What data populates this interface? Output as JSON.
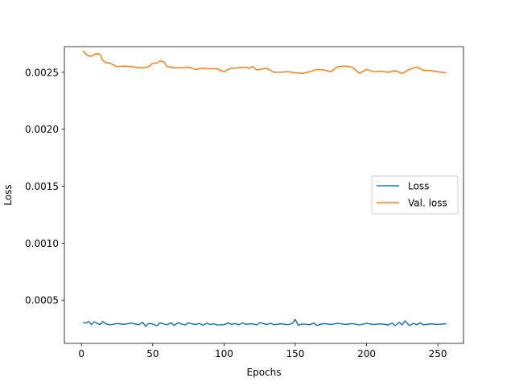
{
  "chart_data": {
    "type": "line",
    "xlabel": "Epochs",
    "ylabel": "Loss",
    "xlim": [
      -12,
      268
    ],
    "ylim": [
      0.00012,
      0.002725
    ],
    "xticks": [
      0,
      50,
      100,
      150,
      200,
      250
    ],
    "xtick_labels": [
      "0",
      "50",
      "100",
      "150",
      "200",
      "250"
    ],
    "yticks": [
      0.0005,
      0.001,
      0.0015,
      0.002,
      0.0025
    ],
    "ytick_labels": [
      "0.0005",
      "0.0010",
      "0.0015",
      "0.0020",
      "0.0025"
    ],
    "legend_placement": "center-right",
    "grid": false,
    "series": [
      {
        "name": "Loss",
        "color": "#1f77b4",
        "x": [
          1,
          3,
          5,
          7,
          9,
          11,
          13,
          15,
          17,
          20,
          25,
          30,
          35,
          40,
          43,
          45,
          47,
          50,
          53,
          55,
          58,
          60,
          63,
          65,
          68,
          70,
          73,
          75,
          78,
          80,
          83,
          85,
          88,
          90,
          93,
          95,
          100,
          103,
          105,
          108,
          110,
          113,
          115,
          120,
          123,
          125,
          130,
          133,
          135,
          140,
          145,
          148,
          150,
          152,
          155,
          160,
          163,
          165,
          170,
          175,
          180,
          185,
          190,
          195,
          200,
          205,
          210,
          215,
          218,
          220,
          223,
          225,
          227,
          230,
          233,
          235,
          238,
          240,
          245,
          250,
          256
        ],
        "y": [
          0.000305,
          0.000298,
          0.000312,
          0.000285,
          0.00031,
          0.000295,
          0.000285,
          0.000312,
          0.000292,
          0.000282,
          0.000295,
          0.000288,
          0.000298,
          0.000284,
          0.000305,
          0.00027,
          0.000295,
          0.00029,
          0.000275,
          0.0003,
          0.00029,
          0.000284,
          0.0003,
          0.000278,
          0.000302,
          0.00029,
          0.000282,
          0.0003,
          0.00029,
          0.000286,
          0.000296,
          0.000278,
          0.000298,
          0.000286,
          0.000292,
          0.000282,
          0.000284,
          0.0003,
          0.000288,
          0.000294,
          0.000282,
          0.0003,
          0.000288,
          0.000292,
          0.000282,
          0.000302,
          0.000286,
          0.000296,
          0.000284,
          0.000292,
          0.000284,
          0.000296,
          0.00033,
          0.00028,
          0.00029,
          0.000284,
          0.000298,
          0.000278,
          0.000294,
          0.000286,
          0.000296,
          0.000286,
          0.000294,
          0.000282,
          0.000296,
          0.000286,
          0.000292,
          0.000282,
          0.000298,
          0.000276,
          0.000306,
          0.000282,
          0.000318,
          0.000276,
          0.000296,
          0.000284,
          0.0003,
          0.000282,
          0.000292,
          0.000286,
          0.000292
        ]
      },
      {
        "name": "Val. loss",
        "color": "#ff7f0e",
        "x": [
          1,
          3,
          5,
          7,
          9,
          11,
          13,
          15,
          17,
          20,
          25,
          30,
          35,
          40,
          45,
          48,
          50,
          53,
          55,
          58,
          60,
          63,
          65,
          70,
          75,
          80,
          85,
          90,
          95,
          100,
          103,
          105,
          110,
          115,
          118,
          120,
          123,
          125,
          130,
          135,
          140,
          145,
          150,
          155,
          160,
          165,
          170,
          175,
          180,
          185,
          190,
          195,
          200,
          205,
          210,
          215,
          220,
          225,
          230,
          235,
          238,
          240,
          245,
          250,
          256
        ],
        "y": [
          0.00269,
          0.00266,
          0.002645,
          0.00264,
          0.002655,
          0.002665,
          0.002655,
          0.002605,
          0.002585,
          0.00258,
          0.00255,
          0.002555,
          0.00255,
          0.00254,
          0.00254,
          0.002555,
          0.00258,
          0.00258,
          0.0026,
          0.00259,
          0.00255,
          0.002545,
          0.00254,
          0.00254,
          0.002545,
          0.002525,
          0.002535,
          0.00253,
          0.00253,
          0.002505,
          0.002525,
          0.002535,
          0.00254,
          0.002545,
          0.002535,
          0.00255,
          0.00252,
          0.002525,
          0.002535,
          0.0025,
          0.0025,
          0.002505,
          0.002495,
          0.00249,
          0.002505,
          0.002525,
          0.00252,
          0.002505,
          0.00255,
          0.002555,
          0.002545,
          0.00249,
          0.002525,
          0.002505,
          0.00251,
          0.0025,
          0.002515,
          0.00249,
          0.002525,
          0.002545,
          0.00253,
          0.002515,
          0.002515,
          0.002505,
          0.002495
        ]
      }
    ]
  }
}
